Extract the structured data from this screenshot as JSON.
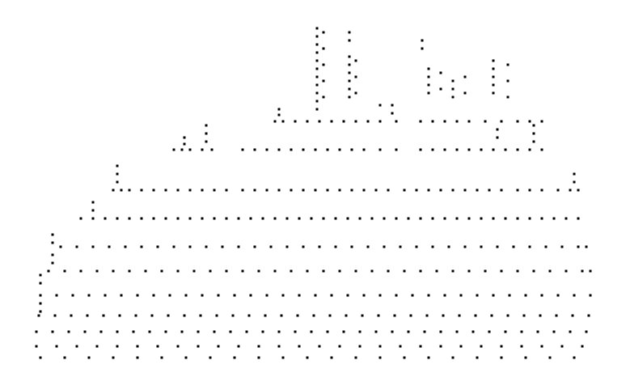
{
  "chart_data": {
    "type": "scatter",
    "xlim": [
      0,
      779
    ],
    "ylim": [
      482,
      0
    ],
    "xticks": [],
    "yticks": [],
    "grid": false,
    "tick_labels": false,
    "marker": "square",
    "color": "#000000",
    "series": [
      {
        "x": [
          340,
          350,
          365,
          380,
          395,
          410,
          425,
          440,
          455,
          470,
          490,
          520,
          535,
          550,
          565,
          580,
          600,
          620,
          640,
          655,
          670
        ],
        "values": [
          150,
          150,
          150,
          150,
          150,
          150,
          150,
          150,
          150,
          150,
          150,
          150,
          150,
          150,
          150,
          150,
          150,
          150,
          150,
          150,
          150
        ]
      },
      {
        "x": [
          215,
          225,
          235,
          250,
          262,
          300,
          315,
          330,
          345,
          360,
          375,
          390,
          405,
          420,
          435,
          450,
          470,
          490,
          520,
          535,
          550,
          565,
          580,
          595,
          610,
          625,
          640,
          655,
          670
        ],
        "values": [
          185,
          185,
          185,
          185,
          185,
          185,
          185,
          185,
          185,
          185,
          185,
          185,
          185,
          185,
          185,
          185,
          185,
          185,
          185,
          185,
          185,
          185,
          185,
          185,
          185,
          185,
          185,
          185,
          185
        ]
      },
      {
        "x": [
          140,
          150,
          160,
          175,
          190,
          205,
          220,
          235,
          250,
          265,
          280,
          300,
          315,
          330,
          345,
          360,
          375,
          390,
          405,
          420,
          435,
          450,
          465,
          480,
          500,
          515,
          530,
          545,
          560,
          575,
          590,
          605,
          620,
          640,
          655,
          670,
          690,
          705,
          715
        ],
        "values": [
          235,
          235,
          235,
          235,
          235,
          235,
          235,
          235,
          235,
          235,
          235,
          235,
          235,
          235,
          235,
          235,
          235,
          235,
          235,
          235,
          235,
          235,
          235,
          235,
          235,
          235,
          235,
          235,
          235,
          235,
          235,
          235,
          235,
          235,
          235,
          235,
          235,
          235,
          235
        ]
      },
      {
        "x": [
          100,
          115,
          130,
          145,
          160,
          175,
          190,
          205,
          220,
          235,
          250,
          265,
          280,
          295,
          310,
          325,
          340,
          355,
          370,
          385,
          400,
          415,
          430,
          445,
          460,
          475,
          490,
          505,
          520,
          535,
          550,
          565,
          580,
          595,
          610,
          625,
          640,
          655,
          670,
          685,
          700,
          715
        ],
        "values": [
          270,
          270,
          270,
          270,
          270,
          270,
          270,
          270,
          270,
          270,
          270,
          270,
          270,
          270,
          270,
          270,
          270,
          270,
          270,
          270,
          270,
          270,
          270,
          270,
          270,
          270,
          270,
          270,
          270,
          270,
          270,
          270,
          270,
          270,
          270,
          270,
          270,
          270,
          270,
          270,
          270,
          270
        ]
      },
      {
        "x": [
          75,
          95,
          115,
          135,
          155,
          175,
          195,
          215,
          235,
          255,
          275,
          295,
          315,
          335,
          355,
          375,
          395,
          415,
          435,
          455,
          475,
          495,
          515,
          535,
          555,
          575,
          595,
          615,
          635,
          655,
          675,
          695,
          715,
          725
        ],
        "values": [
          305,
          305,
          305,
          305,
          305,
          305,
          305,
          305,
          305,
          305,
          305,
          305,
          305,
          305,
          305,
          305,
          305,
          305,
          305,
          305,
          305,
          305,
          305,
          305,
          305,
          305,
          305,
          305,
          305,
          305,
          305,
          305,
          305,
          305
        ]
      },
      {
        "x": [
          60,
          80,
          100,
          120,
          140,
          160,
          180,
          200,
          220,
          240,
          260,
          280,
          300,
          320,
          340,
          360,
          380,
          400,
          420,
          440,
          460,
          480,
          500,
          520,
          540,
          560,
          580,
          600,
          620,
          640,
          660,
          680,
          700,
          720,
          730
        ],
        "values": [
          335,
          335,
          335,
          335,
          335,
          335,
          335,
          335,
          335,
          335,
          335,
          335,
          335,
          335,
          335,
          335,
          335,
          335,
          335,
          335,
          335,
          335,
          335,
          335,
          335,
          335,
          335,
          335,
          335,
          335,
          335,
          335,
          335,
          335,
          335
        ]
      },
      {
        "x": [
          50,
          70,
          90,
          110,
          130,
          150,
          170,
          190,
          210,
          230,
          250,
          270,
          290,
          310,
          330,
          350,
          370,
          390,
          410,
          430,
          450,
          470,
          490,
          510,
          530,
          550,
          570,
          590,
          610,
          630,
          650,
          670,
          690,
          710,
          730
        ],
        "values": [
          365,
          365,
          365,
          365,
          365,
          365,
          365,
          365,
          365,
          365,
          365,
          365,
          365,
          365,
          365,
          365,
          365,
          365,
          365,
          365,
          365,
          365,
          365,
          365,
          365,
          365,
          365,
          365,
          365,
          365,
          365,
          365,
          365,
          365,
          365
        ]
      },
      {
        "x": [
          48,
          68,
          88,
          108,
          128,
          148,
          168,
          188,
          208,
          228,
          248,
          268,
          288,
          308,
          328,
          348,
          368,
          388,
          408,
          428,
          448,
          468,
          488,
          508,
          528,
          548,
          568,
          588,
          608,
          628,
          648,
          668,
          688,
          708,
          728
        ],
        "values": [
          390,
          390,
          390,
          390,
          390,
          390,
          390,
          390,
          390,
          390,
          390,
          390,
          390,
          390,
          390,
          390,
          390,
          390,
          390,
          390,
          390,
          390,
          390,
          390,
          390,
          390,
          390,
          390,
          390,
          390,
          390,
          390,
          390,
          390,
          390
        ]
      },
      {
        "x": [
          45,
          65,
          85,
          105,
          125,
          145,
          165,
          185,
          205,
          225,
          245,
          265,
          285,
          305,
          325,
          345,
          365,
          385,
          405,
          425,
          445,
          465,
          485,
          505,
          525,
          545,
          565,
          585,
          605,
          625,
          645,
          665,
          685,
          705,
          725
        ],
        "values": [
          410,
          410,
          410,
          410,
          410,
          410,
          410,
          410,
          410,
          410,
          410,
          410,
          410,
          410,
          410,
          410,
          410,
          410,
          410,
          410,
          410,
          410,
          410,
          410,
          410,
          410,
          410,
          410,
          410,
          410,
          410,
          410,
          410,
          410,
          410
        ]
      },
      {
        "x": [
          45,
          70,
          95,
          120,
          145,
          170,
          195,
          220,
          245,
          270,
          295,
          320,
          345,
          370,
          395,
          420,
          445,
          470,
          495,
          520,
          545,
          570,
          595,
          620,
          645,
          670,
          695,
          720
        ],
        "values": [
          428,
          428,
          428,
          428,
          428,
          428,
          428,
          428,
          428,
          428,
          428,
          428,
          428,
          428,
          428,
          428,
          428,
          428,
          428,
          428,
          428,
          428,
          428,
          428,
          428,
          428,
          428,
          428
        ]
      },
      {
        "x": [
          50,
          80,
          110,
          140,
          170,
          200,
          230,
          260,
          290,
          320,
          350,
          380,
          410,
          440,
          470,
          500,
          530,
          560,
          590,
          620,
          650,
          680,
          710
        ],
        "values": [
          442,
          442,
          442,
          442,
          442,
          442,
          442,
          442,
          442,
          442,
          442,
          442,
          442,
          442,
          442,
          442,
          442,
          442,
          442,
          442,
          442,
          442,
          442
        ]
      },
      {
        "x": [
          392,
          392,
          392,
          392,
          392,
          392,
          392,
          392,
          392,
          392,
          392,
          400,
          400,
          400,
          400,
          400,
          432,
          432,
          432,
          432,
          432,
          432,
          432,
          432,
          440,
          440,
          440,
          522,
          522,
          530,
          530,
          530,
          530,
          545,
          545,
          560,
          560,
          560,
          575,
          575,
          610,
          610,
          610,
          610,
          610,
          628,
          628,
          628,
          345,
          345,
          470,
          485,
          485,
          255,
          255,
          255,
          228,
          228,
          615,
          615,
          660,
          660,
          660,
          145,
          145,
          145,
          710,
          710,
          115,
          115,
          65,
          65,
          65,
          65,
          50,
          50,
          50,
          50
        ],
        "values": [
          35,
          45,
          55,
          65,
          75,
          85,
          95,
          105,
          115,
          125,
          135,
          40,
          60,
          80,
          100,
          120,
          40,
          50,
          70,
          80,
          90,
          100,
          110,
          120,
          75,
          95,
          115,
          50,
          60,
          85,
          95,
          105,
          115,
          90,
          110,
          100,
          110,
          120,
          95,
          115,
          75,
          85,
          95,
          105,
          115,
          80,
          100,
          120,
          135,
          142,
          130,
          130,
          140,
          155,
          165,
          175,
          170,
          178,
          160,
          170,
          155,
          165,
          175,
          205,
          215,
          225,
          215,
          225,
          250,
          260,
          290,
          300,
          315,
          325,
          340,
          350,
          375,
          385
        ]
      }
    ]
  }
}
